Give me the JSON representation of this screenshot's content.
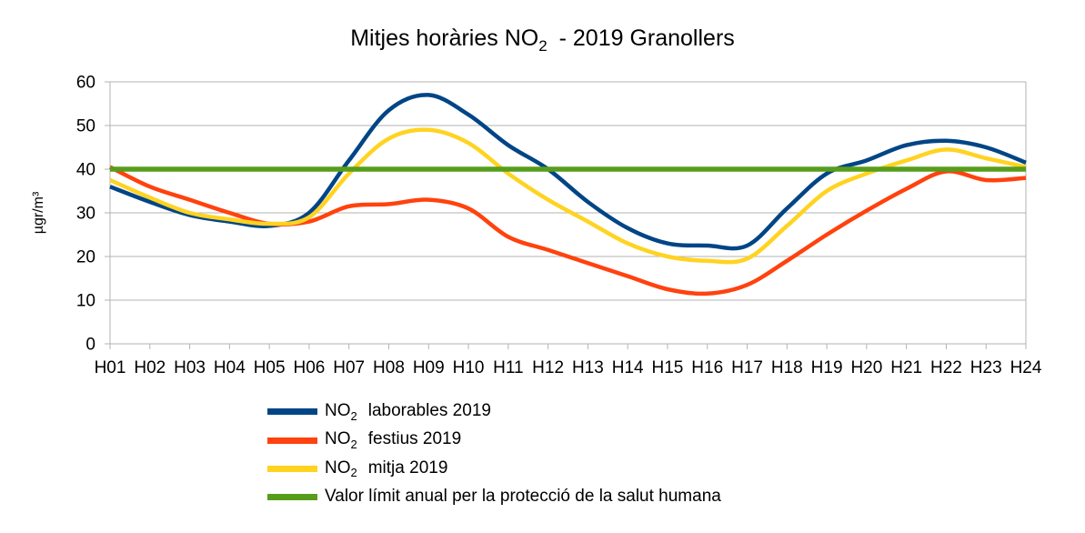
{
  "title": {
    "prefix": "Mitjes horàries NO",
    "sub": "2",
    "suffix": " - 2019 Granollers",
    "full_text": "Mitjes horàries NO₂ - 2019 Granollers"
  },
  "colors": {
    "background": "#ffffff",
    "text": "#000000",
    "grid": "#b3b3b3",
    "axis": "#b3b3b3",
    "laborables": "#004586",
    "festius": "#ff420e",
    "mitja": "#ffd320",
    "limit": "#579d1c"
  },
  "chart_data": {
    "type": "line",
    "title": "Mitjes horàries NO₂ - 2019 Granollers",
    "xlabel": "",
    "ylabel": "µgr/m³",
    "ylim": [
      0,
      60
    ],
    "yticks": [
      0,
      10,
      20,
      30,
      40,
      50,
      60
    ],
    "grid": true,
    "legend_position": "bottom",
    "smooth_lines": true,
    "categories": [
      "H01",
      "H02",
      "H03",
      "H04",
      "H05",
      "H06",
      "H07",
      "H08",
      "H09",
      "H10",
      "H11",
      "H12",
      "H13",
      "H14",
      "H15",
      "H16",
      "H17",
      "H18",
      "H19",
      "H20",
      "H21",
      "H22",
      "H23",
      "H24"
    ],
    "series": [
      {
        "key": "laborables",
        "name": "NO₂ laborables 2019",
        "legend": {
          "prefix": "NO",
          "sub": "2",
          "rest": "laborables 2019"
        },
        "color": "#004586",
        "line_width": 4.5,
        "values": [
          36,
          32.5,
          29.5,
          28,
          27,
          30,
          42,
          53.5,
          57,
          52.5,
          45.5,
          40,
          32.5,
          26.5,
          23,
          22.5,
          22.5,
          31,
          39,
          42,
          45.5,
          46.5,
          45,
          41.5
        ]
      },
      {
        "key": "festius",
        "name": "NO₂ festius 2019",
        "legend": {
          "prefix": "NO",
          "sub": "2",
          "rest": "festius 2019"
        },
        "color": "#ff420e",
        "line_width": 4.5,
        "values": [
          40.5,
          36,
          33,
          30,
          27.5,
          28,
          31.5,
          32,
          33,
          31,
          24.5,
          21.5,
          18.5,
          15.5,
          12.5,
          11.5,
          13.5,
          19,
          25,
          30.5,
          35.5,
          39.5,
          37.5,
          38
        ]
      },
      {
        "key": "mitja",
        "name": "NO₂ mitja 2019",
        "legend": {
          "prefix": "NO",
          "sub": "2",
          "rest": "mitja 2019"
        },
        "color": "#ffd320",
        "line_width": 4.5,
        "values": [
          37.5,
          33.5,
          30,
          28.5,
          27.5,
          29,
          39,
          47,
          49,
          46,
          39,
          33,
          28,
          23,
          20,
          19,
          19.5,
          27,
          35,
          39,
          42,
          44.5,
          42.5,
          40.5
        ]
      },
      {
        "key": "limit",
        "name": "Valor límit anual per la protecció de la salut humana",
        "legend": {
          "prefix": "Valor límit anual per la protecció de la salut humana",
          "sub": "",
          "rest": ""
        },
        "color": "#579d1c",
        "line_width": 5.5,
        "values": [
          40,
          40,
          40,
          40,
          40,
          40,
          40,
          40,
          40,
          40,
          40,
          40,
          40,
          40,
          40,
          40,
          40,
          40,
          40,
          40,
          40,
          40,
          40,
          40
        ]
      }
    ]
  }
}
